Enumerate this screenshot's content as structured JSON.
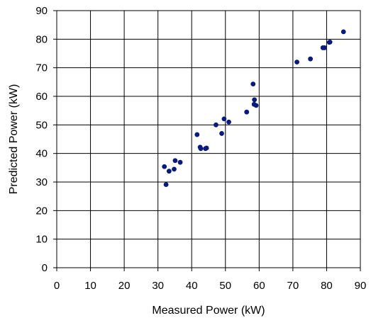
{
  "chart_data": {
    "type": "scatter",
    "title": "",
    "xlabel": "Measured Power (kW)",
    "ylabel": "Predicted Power (kW)",
    "xlim": [
      0,
      90
    ],
    "ylim": [
      0,
      90
    ],
    "xticks": [
      0,
      10,
      20,
      30,
      40,
      50,
      60,
      70,
      80,
      90
    ],
    "yticks": [
      0,
      10,
      20,
      30,
      40,
      50,
      60,
      70,
      80,
      90
    ],
    "grid": true,
    "legend": "none",
    "marker_color": "#0a1a7a",
    "series": [
      {
        "points": [
          [
            31.9,
            35.4
          ],
          [
            32.4,
            29.1
          ],
          [
            33.3,
            33.8
          ],
          [
            34.8,
            34.5
          ],
          [
            35.1,
            37.5
          ],
          [
            36.6,
            36.9
          ],
          [
            41.6,
            46.6
          ],
          [
            42.5,
            42.2
          ],
          [
            42.7,
            41.7
          ],
          [
            44.1,
            41.7
          ],
          [
            44.4,
            41.9
          ],
          [
            47.2,
            50.0
          ],
          [
            48.9,
            47.0
          ],
          [
            49.6,
            52.1
          ],
          [
            51.0,
            51.0
          ],
          [
            56.3,
            54.5
          ],
          [
            58.2,
            64.3
          ],
          [
            58.5,
            57.2
          ],
          [
            58.6,
            58.8
          ],
          [
            59.1,
            56.8
          ],
          [
            71.2,
            72.0
          ],
          [
            75.2,
            73.1
          ],
          [
            78.9,
            77.0
          ],
          [
            79.4,
            77.0
          ],
          [
            80.8,
            78.9
          ],
          [
            81.0,
            79.0
          ],
          [
            85.0,
            82.6
          ]
        ]
      }
    ]
  }
}
